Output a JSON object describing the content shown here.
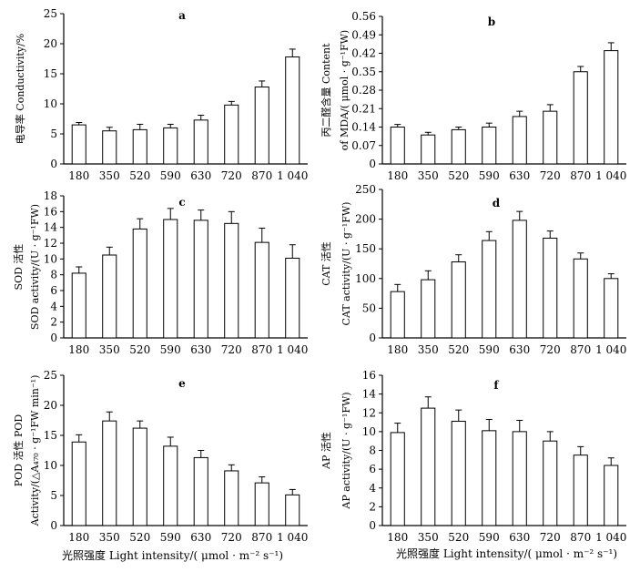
{
  "x_title": "光照强度  Light intensity/( μmol · m⁻² s⁻¹)",
  "chart_data": [
    {
      "type": "bar",
      "panel": "a",
      "ylabel_lines": [
        "电导率 Conductivity/%"
      ],
      "categories": [
        "180",
        "350",
        "520",
        "590",
        "630",
        "720",
        "870",
        "1 040"
      ],
      "values": [
        6.5,
        5.5,
        5.7,
        6.0,
        7.3,
        9.8,
        12.8,
        17.8
      ],
      "errors": [
        0.4,
        0.6,
        0.9,
        0.6,
        0.8,
        0.6,
        1.0,
        1.3
      ],
      "ylim": [
        0,
        25
      ],
      "yticks": [
        "0",
        "5",
        "10",
        "15",
        "20",
        "25"
      ],
      "ytick_values": [
        0,
        5,
        10,
        15,
        20,
        25
      ]
    },
    {
      "type": "bar",
      "panel": "b",
      "ylabel_lines": [
        "丙二醛含量 Content",
        "of MDA/( μmol · g⁻¹FW)"
      ],
      "categories": [
        "180",
        "350",
        "520",
        "590",
        "630",
        "720",
        "870",
        "1 040"
      ],
      "values": [
        0.14,
        0.11,
        0.13,
        0.14,
        0.18,
        0.2,
        0.35,
        0.43
      ],
      "errors": [
        0.01,
        0.01,
        0.01,
        0.015,
        0.02,
        0.025,
        0.02,
        0.03
      ],
      "ylim": [
        0,
        0.56
      ],
      "yticks": [
        "0",
        "0.07",
        "0.14",
        "0.21",
        "0.28",
        "0.35",
        "0.42",
        "0.49",
        "0.56"
      ],
      "ytick_values": [
        0,
        0.07,
        0.14,
        0.21,
        0.28,
        0.35,
        0.42,
        0.49,
        0.56
      ]
    },
    {
      "type": "bar",
      "panel": "c",
      "ylabel_lines": [
        "SOD 活性",
        "SOD activity/(U · g⁻¹FW)"
      ],
      "categories": [
        "180",
        "350",
        "520",
        "590",
        "630",
        "720",
        "870",
        "1 040"
      ],
      "values": [
        8.2,
        10.5,
        13.8,
        15.0,
        14.9,
        14.5,
        12.1,
        10.1
      ],
      "errors": [
        0.8,
        1.0,
        1.3,
        1.4,
        1.3,
        1.5,
        1.8,
        1.7
      ],
      "ylim": [
        0,
        18
      ],
      "yticks": [
        "0",
        "2",
        "4",
        "6",
        "8",
        "10",
        "12",
        "14",
        "16",
        "18"
      ],
      "ytick_values": [
        0,
        2,
        4,
        6,
        8,
        10,
        12,
        14,
        16,
        18
      ]
    },
    {
      "type": "bar",
      "panel": "d",
      "ylabel_lines": [
        "CAT 活性",
        "CAT activity/(U · g⁻¹FW)"
      ],
      "categories": [
        "180",
        "350",
        "520",
        "590",
        "630",
        "720",
        "870",
        "1 040"
      ],
      "values": [
        78,
        98,
        128,
        164,
        198,
        168,
        133,
        100
      ],
      "errors": [
        12,
        15,
        12,
        15,
        15,
        12,
        10,
        8
      ],
      "ylim": [
        0,
        250
      ],
      "yticks": [
        "0",
        "50",
        "100",
        "150",
        "200",
        "250"
      ],
      "ytick_values": [
        0,
        50,
        100,
        150,
        200,
        250
      ]
    },
    {
      "type": "bar",
      "panel": "e",
      "ylabel_lines": [
        "POD 活性 POD",
        "Activity/(△A₄₇₀ · g⁻¹FW min⁻¹)"
      ],
      "categories": [
        "180",
        "350",
        "520",
        "590",
        "630",
        "720",
        "870",
        "1 040"
      ],
      "values": [
        13.9,
        17.4,
        16.2,
        13.2,
        11.3,
        9.1,
        7.1,
        5.1
      ],
      "errors": [
        1.2,
        1.5,
        1.2,
        1.5,
        1.2,
        1.0,
        1.0,
        0.9
      ],
      "ylim": [
        0,
        25
      ],
      "yticks": [
        "0",
        "5",
        "10",
        "15",
        "20",
        "25"
      ],
      "ytick_values": [
        0,
        5,
        10,
        15,
        20,
        25
      ]
    },
    {
      "type": "bar",
      "panel": "f",
      "ylabel_lines": [
        "AP 活性",
        "AP activity/(U · g⁻¹FW)"
      ],
      "categories": [
        "180",
        "350",
        "520",
        "590",
        "630",
        "720",
        "870",
        "1 040"
      ],
      "values": [
        9.9,
        12.5,
        11.1,
        10.1,
        10.0,
        9.0,
        7.5,
        6.4
      ],
      "errors": [
        1.0,
        1.2,
        1.2,
        1.2,
        1.2,
        1.0,
        0.9,
        0.8
      ],
      "ylim": [
        0,
        16
      ],
      "yticks": [
        "0",
        "2",
        "4",
        "6",
        "8",
        "10",
        "12",
        "14",
        "16"
      ],
      "ytick_values": [
        0,
        2,
        4,
        6,
        8,
        10,
        12,
        14,
        16
      ]
    }
  ]
}
